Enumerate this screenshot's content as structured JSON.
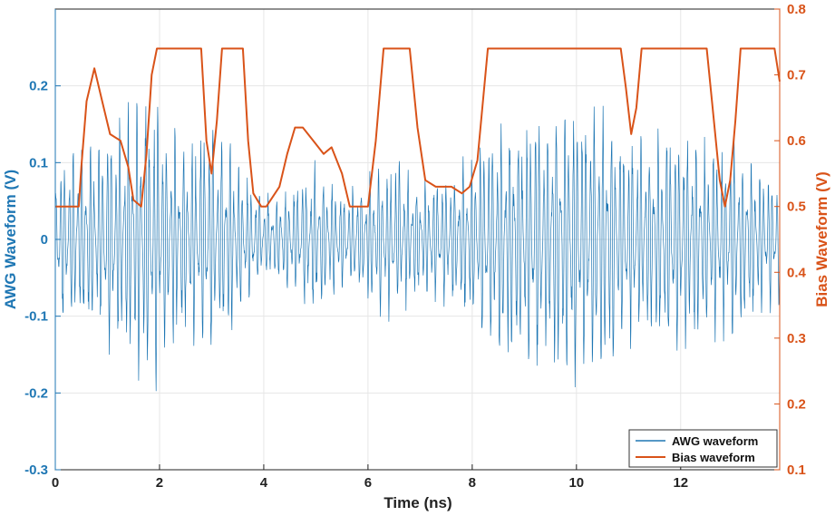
{
  "chart_data": {
    "type": "line",
    "title": "",
    "xlabel": "Time (ns)",
    "ylabel_left": "AWG Waveform (V)",
    "ylabel_right": "Bias Waveform (V)",
    "xlim": [
      0,
      13.9
    ],
    "ylim_left": [
      -0.3,
      0.3
    ],
    "ylim_right": [
      0.1,
      0.8
    ],
    "x_ticks": [
      "0",
      "2",
      "4",
      "6",
      "8",
      "10",
      "12"
    ],
    "y_left_ticks": [
      "-0.3",
      "-0.2",
      "-0.1",
      "0",
      "0.1",
      "0.2"
    ],
    "y_right_ticks": [
      "0.1",
      "0.2",
      "0.3",
      "0.4",
      "0.5",
      "0.6",
      "0.7",
      "0.8"
    ],
    "grid": true,
    "legend_position": "bottom-right",
    "colors": {
      "awg": "#1f77b4",
      "bias": "#d95319"
    },
    "series": [
      {
        "name": "AWG waveform",
        "axis": "left",
        "envelope_x": [
          0,
          0.5,
          1.0,
          1.5,
          1.8,
          2.0,
          2.5,
          3.0,
          3.5,
          4.0,
          4.5,
          5.0,
          5.5,
          6.0,
          6.5,
          7.0,
          7.5,
          8.0,
          8.5,
          9.0,
          9.5,
          10.0,
          10.5,
          11.0,
          11.5,
          12.0,
          12.5,
          13.0,
          13.5,
          13.9
        ],
        "envelope_amp": [
          0.12,
          0.14,
          0.16,
          0.2,
          0.23,
          0.2,
          0.14,
          0.18,
          0.12,
          0.06,
          0.08,
          0.11,
          0.07,
          0.1,
          0.12,
          0.09,
          0.1,
          0.13,
          0.17,
          0.19,
          0.2,
          0.22,
          0.21,
          0.15,
          0.16,
          0.18,
          0.14,
          0.15,
          0.11,
          0.09
        ]
      },
      {
        "name": "Bias waveform",
        "axis": "right",
        "x": [
          0,
          0.45,
          0.5,
          0.6,
          0.75,
          0.9,
          1.05,
          1.25,
          1.4,
          1.5,
          1.65,
          1.75,
          1.85,
          1.95,
          2.05,
          2.8,
          2.9,
          3.0,
          3.1,
          3.2,
          3.3,
          3.6,
          3.7,
          3.8,
          3.95,
          4.05,
          4.3,
          4.45,
          4.6,
          4.75,
          4.95,
          5.15,
          5.3,
          5.5,
          5.65,
          5.85,
          6.0,
          6.15,
          6.3,
          6.8,
          6.95,
          7.1,
          7.3,
          7.6,
          7.8,
          7.95,
          8.1,
          8.3,
          10.85,
          10.95,
          11.05,
          11.15,
          11.25,
          11.9,
          12.5,
          12.6,
          12.75,
          12.85,
          12.95,
          13.05,
          13.15,
          13.8,
          13.9
        ],
        "y": [
          0.5,
          0.5,
          0.56,
          0.66,
          0.71,
          0.66,
          0.61,
          0.6,
          0.56,
          0.51,
          0.5,
          0.58,
          0.7,
          0.74,
          0.74,
          0.74,
          0.6,
          0.55,
          0.63,
          0.74,
          0.74,
          0.74,
          0.6,
          0.52,
          0.5,
          0.5,
          0.53,
          0.58,
          0.62,
          0.62,
          0.6,
          0.58,
          0.59,
          0.55,
          0.5,
          0.5,
          0.5,
          0.6,
          0.74,
          0.74,
          0.62,
          0.54,
          0.53,
          0.53,
          0.52,
          0.53,
          0.57,
          0.74,
          0.74,
          0.68,
          0.61,
          0.65,
          0.74,
          0.74,
          0.74,
          0.66,
          0.54,
          0.5,
          0.54,
          0.63,
          0.74,
          0.74,
          0.69
        ]
      }
    ]
  }
}
